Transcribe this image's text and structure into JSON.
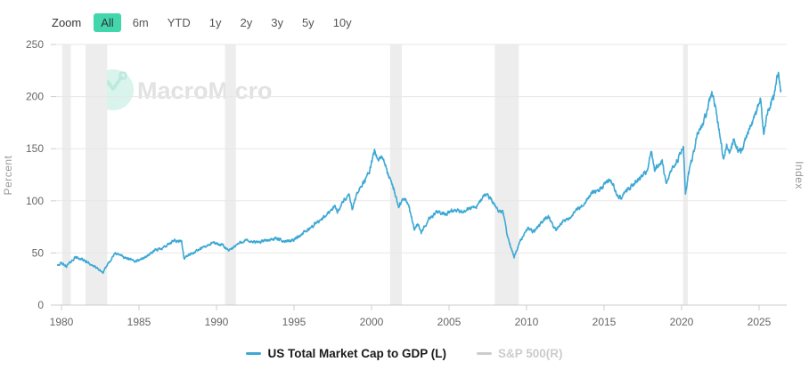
{
  "toolbar": {
    "zoom_label": "Zoom",
    "buttons": [
      {
        "label": "All",
        "selected": true
      },
      {
        "label": "6m",
        "selected": false
      },
      {
        "label": "YTD",
        "selected": false
      },
      {
        "label": "1y",
        "selected": false
      },
      {
        "label": "2y",
        "selected": false
      },
      {
        "label": "3y",
        "selected": false
      },
      {
        "label": "5y",
        "selected": false
      },
      {
        "label": "10y",
        "selected": false
      }
    ],
    "selected_color": "#41d6ac"
  },
  "watermark": {
    "brand": "MacroMicro",
    "circle_color": "#d8f4ec",
    "glyph_color": "#bce9db",
    "text_color": "#e2e2e2"
  },
  "axes": {
    "left_title": "Percent",
    "right_title": "Index",
    "y_ticks": [
      0,
      50,
      100,
      150,
      200,
      250
    ],
    "x_ticks": [
      1980,
      1985,
      1990,
      1995,
      2000,
      2005,
      2010,
      2015,
      2020,
      2025
    ]
  },
  "legend": [
    {
      "label": "US Total Market Cap to GDP (L)",
      "color": "#3da8d4",
      "text_color": "#1a1a1a",
      "active": true
    },
    {
      "label": "S&P 500(R)",
      "color": "#cccccc",
      "text_color": "#cccccc",
      "active": false
    }
  ],
  "chart_data": {
    "type": "line",
    "title": "",
    "xlabel": "",
    "ylabel_left": "Percent",
    "ylabel_right": "Index",
    "ylim": [
      0,
      250
    ],
    "xlim": [
      1979.7,
      2026.8
    ],
    "grid": "horizontal",
    "legend_position": "bottom-center",
    "recession_bands": [
      [
        1980.05,
        1980.6
      ],
      [
        1981.55,
        1982.95
      ],
      [
        1990.55,
        1991.25
      ],
      [
        2001.2,
        2001.95
      ],
      [
        2007.95,
        2009.5
      ],
      [
        2020.1,
        2020.4
      ]
    ],
    "series": [
      {
        "name": "US Total Market Cap to GDP (L)",
        "axis": "left",
        "color": "#3da8d4",
        "visible": true,
        "units": "percent",
        "anchors": [
          [
            1979.75,
            39
          ],
          [
            1980.0,
            40
          ],
          [
            1980.3,
            37
          ],
          [
            1980.9,
            46
          ],
          [
            1981.3,
            44
          ],
          [
            1981.8,
            40
          ],
          [
            1982.3,
            35
          ],
          [
            1982.7,
            31
          ],
          [
            1983.0,
            40
          ],
          [
            1983.5,
            50
          ],
          [
            1984.0,
            46
          ],
          [
            1984.7,
            42
          ],
          [
            1985.3,
            45
          ],
          [
            1986.0,
            52
          ],
          [
            1986.8,
            57
          ],
          [
            1987.3,
            62
          ],
          [
            1987.75,
            61
          ],
          [
            1987.9,
            45
          ],
          [
            1988.3,
            49
          ],
          [
            1989.0,
            54
          ],
          [
            1989.8,
            60
          ],
          [
            1990.4,
            57
          ],
          [
            1990.8,
            52
          ],
          [
            1991.3,
            58
          ],
          [
            1991.8,
            62
          ],
          [
            1992.5,
            60
          ],
          [
            1993.2,
            62
          ],
          [
            1993.8,
            64
          ],
          [
            1994.4,
            61
          ],
          [
            1995.0,
            63
          ],
          [
            1995.7,
            70
          ],
          [
            1996.3,
            77
          ],
          [
            1997.0,
            85
          ],
          [
            1997.6,
            95
          ],
          [
            1997.8,
            90
          ],
          [
            1998.2,
            100
          ],
          [
            1998.55,
            105
          ],
          [
            1998.75,
            92
          ],
          [
            1999.2,
            112
          ],
          [
            1999.6,
            120
          ],
          [
            1999.9,
            130
          ],
          [
            2000.2,
            148
          ],
          [
            2000.45,
            138
          ],
          [
            2000.7,
            143
          ],
          [
            2001.0,
            128
          ],
          [
            2001.4,
            112
          ],
          [
            2001.75,
            95
          ],
          [
            2002.1,
            103
          ],
          [
            2002.4,
            96
          ],
          [
            2002.75,
            73
          ],
          [
            2003.0,
            78
          ],
          [
            2003.2,
            69
          ],
          [
            2003.7,
            83
          ],
          [
            2004.2,
            89
          ],
          [
            2004.8,
            87
          ],
          [
            2005.3,
            91
          ],
          [
            2005.8,
            89
          ],
          [
            2006.3,
            93
          ],
          [
            2006.8,
            95
          ],
          [
            2007.3,
            106
          ],
          [
            2007.7,
            102
          ],
          [
            2008.1,
            92
          ],
          [
            2008.5,
            88
          ],
          [
            2008.75,
            68
          ],
          [
            2009.0,
            55
          ],
          [
            2009.2,
            47
          ],
          [
            2009.6,
            62
          ],
          [
            2010.1,
            74
          ],
          [
            2010.5,
            70
          ],
          [
            2010.9,
            78
          ],
          [
            2011.4,
            85
          ],
          [
            2011.7,
            76
          ],
          [
            2011.9,
            72
          ],
          [
            2012.3,
            80
          ],
          [
            2012.8,
            84
          ],
          [
            2013.3,
            92
          ],
          [
            2013.8,
            100
          ],
          [
            2014.3,
            108
          ],
          [
            2014.9,
            113
          ],
          [
            2015.3,
            120
          ],
          [
            2015.6,
            115
          ],
          [
            2015.85,
            105
          ],
          [
            2016.1,
            103
          ],
          [
            2016.5,
            110
          ],
          [
            2017.0,
            118
          ],
          [
            2017.5,
            124
          ],
          [
            2017.8,
            130
          ],
          [
            2018.05,
            146
          ],
          [
            2018.25,
            130
          ],
          [
            2018.5,
            134
          ],
          [
            2018.75,
            138
          ],
          [
            2019.0,
            115
          ],
          [
            2019.3,
            128
          ],
          [
            2019.6,
            136
          ],
          [
            2019.95,
            145
          ],
          [
            2020.12,
            152
          ],
          [
            2020.25,
            105
          ],
          [
            2020.45,
            128
          ],
          [
            2020.7,
            142
          ],
          [
            2021.0,
            165
          ],
          [
            2021.4,
            175
          ],
          [
            2021.7,
            188
          ],
          [
            2021.95,
            204
          ],
          [
            2022.15,
            190
          ],
          [
            2022.3,
            180
          ],
          [
            2022.5,
            160
          ],
          [
            2022.7,
            140
          ],
          [
            2022.9,
            152
          ],
          [
            2023.1,
            145
          ],
          [
            2023.35,
            158
          ],
          [
            2023.6,
            150
          ],
          [
            2023.85,
            147
          ],
          [
            2024.1,
            158
          ],
          [
            2024.4,
            170
          ],
          [
            2024.7,
            180
          ],
          [
            2024.95,
            192
          ],
          [
            2025.1,
            200
          ],
          [
            2025.3,
            163
          ],
          [
            2025.5,
            183
          ],
          [
            2025.75,
            192
          ],
          [
            2025.95,
            200
          ],
          [
            2026.1,
            212
          ],
          [
            2026.25,
            223
          ],
          [
            2026.4,
            206
          ]
        ]
      },
      {
        "name": "S&P 500(R)",
        "axis": "right",
        "color": "#cccccc",
        "visible": false,
        "anchors": []
      }
    ]
  }
}
